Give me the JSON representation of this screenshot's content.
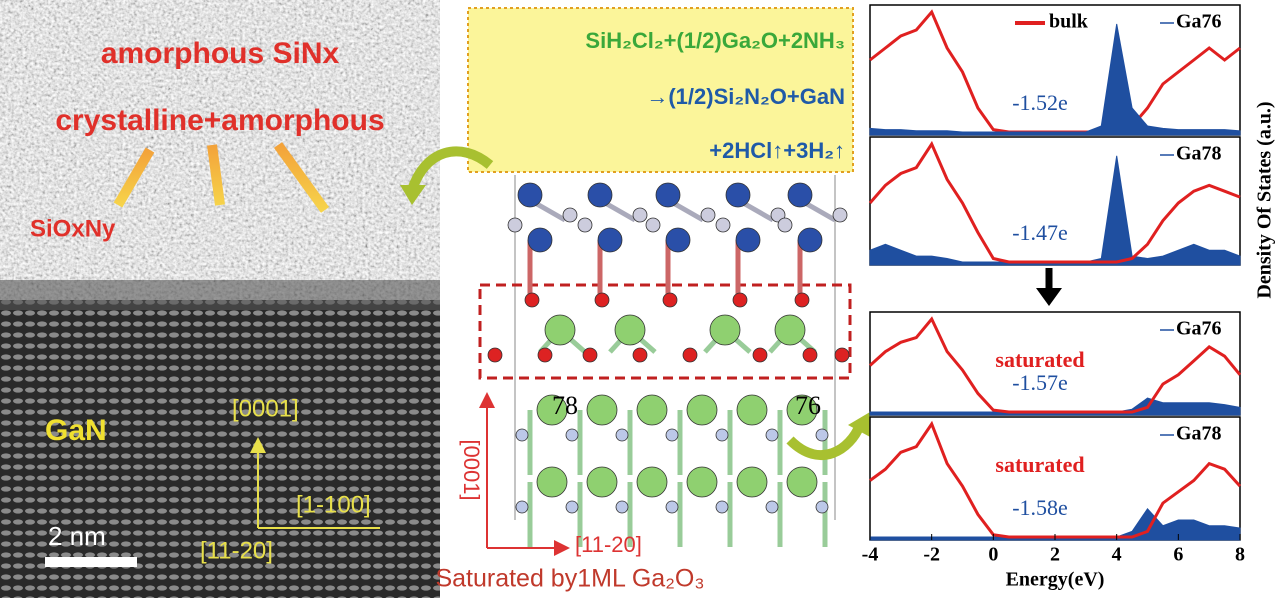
{
  "tem": {
    "layer_top": "amorphous SiNx",
    "layer_mid": "crystalline+amorphous",
    "layer_interface": "SiOxNy",
    "substrate": "GaN",
    "dir_up": "[0001]",
    "dir_right": "[1-100]",
    "dir_in": "[11-20]",
    "scale_bar": "2 nm"
  },
  "reaction": {
    "line1": "SiH₂Cl₂+(1/2)Ga₂O+2NH₃",
    "line2": "→(1/2)Si₂N₂O+GaN",
    "line3": "+2HCl↑+3H₂↑"
  },
  "structure": {
    "atom_left": "78",
    "atom_right": "76",
    "axis_up": "[0001]",
    "axis_right": "[11-20]",
    "caption": "Saturated by1ML Ga₂O₃"
  },
  "chart_data": {
    "type": "line",
    "xlabel": "Energy(eV)",
    "ylabel": "Density Of States (a.u.)",
    "xlim": [
      -4,
      8
    ],
    "xticks": [
      -4,
      -2,
      0,
      2,
      4,
      6,
      8
    ],
    "ylim": [
      0,
      10
    ],
    "x": [
      -4,
      -3.5,
      -3,
      -2.5,
      -2,
      -1.5,
      -1,
      -0.5,
      0,
      0.5,
      1,
      1.5,
      2,
      2.5,
      3,
      3.5,
      4,
      4.5,
      5,
      5.5,
      6,
      6.5,
      7,
      7.5,
      8
    ],
    "panels": [
      {
        "charge": "-1.52e",
        "series": [
          {
            "name": "bulk",
            "color": "#e02020",
            "values": [
              6,
              7,
              8,
              8.5,
              10,
              7,
              5,
              2,
              0.2,
              0,
              0,
              0,
              0,
              0,
              0,
              0,
              0,
              0.5,
              2,
              4,
              5,
              6,
              7,
              6,
              7
            ]
          },
          {
            "name": "Ga76",
            "color": "#1f4fa0",
            "values": [
              0.3,
              0.2,
              0.2,
              0.1,
              0.1,
              0.1,
              0,
              0,
              0,
              0,
              0,
              0,
              0,
              0,
              0,
              0.5,
              9,
              2,
              0.5,
              0.3,
              0.2,
              0.2,
              0.2,
              0.2,
              0.1
            ]
          }
        ]
      },
      {
        "charge": "-1.47e",
        "series": [
          {
            "color": "#e02020",
            "values": [
              5,
              6.5,
              7.5,
              8,
              10,
              7,
              5,
              2.5,
              0.3,
              0,
              0,
              0,
              0,
              0,
              0,
              0,
              0,
              0.3,
              1.5,
              3.5,
              5,
              6,
              6.5,
              6,
              5.5
            ]
          },
          {
            "name": "Ga78",
            "color": "#1f4fa0",
            "values": [
              1,
              1.5,
              1,
              0.5,
              0.5,
              0.3,
              0,
              0,
              0,
              0,
              0,
              0,
              0,
              0,
              0,
              0.3,
              9,
              0.5,
              0.3,
              0.5,
              1,
              1.5,
              1,
              1,
              0.5
            ]
          }
        ]
      },
      {
        "note": "saturated",
        "charge": "-1.57e",
        "series": [
          {
            "color": "#e02020",
            "values": [
              5,
              6.5,
              7.5,
              8,
              10,
              6.5,
              4.5,
              2,
              0.2,
              0,
              0,
              0,
              0,
              0,
              0,
              0,
              0,
              0,
              0.5,
              3,
              4,
              5.5,
              7,
              6,
              4
            ]
          },
          {
            "name": "Ga76",
            "color": "#1f4fa0",
            "values": [
              0,
              0,
              0,
              0,
              0,
              0,
              0,
              0,
              0,
              0,
              0,
              0,
              0,
              0,
              0,
              0,
              0,
              0.3,
              1.5,
              1,
              1,
              1,
              1,
              0.8,
              0.5
            ]
          }
        ]
      },
      {
        "note": "saturated",
        "charge": "-1.58e",
        "series": [
          {
            "color": "#e02020",
            "values": [
              5,
              6,
              7.5,
              8,
              10,
              6.5,
              4.5,
              2,
              0.2,
              0,
              0,
              0,
              0,
              0,
              0,
              0,
              0,
              0,
              0.5,
              3,
              4,
              5,
              6.5,
              6,
              4.5
            ]
          },
          {
            "name": "Ga78",
            "color": "#1f4fa0",
            "values": [
              0,
              0,
              0,
              0,
              0,
              0,
              0,
              0,
              0,
              0,
              0,
              0,
              0,
              0,
              0,
              0,
              0,
              0.5,
              2.5,
              1,
              1.5,
              1.5,
              1,
              1,
              0.8
            ]
          }
        ]
      }
    ]
  }
}
